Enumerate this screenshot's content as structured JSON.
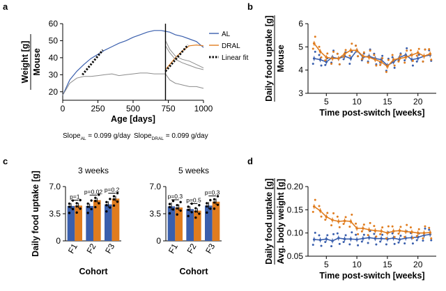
{
  "colors": {
    "al": "#3a5fad",
    "dral": "#e07c1e",
    "grey": "#8c8c8c",
    "fit": "#111111",
    "black": "#000000"
  },
  "panel_labels": {
    "a": "a",
    "b": "b",
    "c": "c",
    "d": "d"
  },
  "chart_data": [
    {
      "panel": "a",
      "type": "line",
      "xlabel": "Age [days]",
      "ylabel_top": "Weight [g]",
      "ylabel_bottom": "Mouse",
      "xlim": [
        0,
        1000
      ],
      "ylim": [
        15,
        60
      ],
      "xticks": [
        0,
        250,
        500,
        750,
        1000
      ],
      "yticks": [
        20,
        30,
        40,
        50,
        60
      ],
      "switch_day": 730,
      "legend": {
        "placement": "right",
        "entries": [
          "AL",
          "DRAL",
          "Linear fit"
        ]
      },
      "series": [
        {
          "name": "AL",
          "color_key": "al",
          "x": [
            0,
            50,
            100,
            150,
            200,
            250,
            300,
            350,
            400,
            450,
            500,
            550,
            600,
            650,
            700,
            730,
            760,
            800,
            850,
            900,
            950,
            1000
          ],
          "y": [
            18,
            27,
            32,
            36,
            39.5,
            42,
            44.5,
            46.5,
            48.5,
            50,
            52,
            53.5,
            55,
            56,
            56,
            55.5,
            55,
            53.5,
            52.5,
            51,
            49.5,
            46
          ]
        },
        {
          "name": "DRAL",
          "color_key": "dral",
          "x": [
            730,
            760,
            800,
            850,
            900,
            950,
            1000
          ],
          "y": [
            33,
            36,
            40,
            44,
            47,
            47.5,
            47
          ]
        },
        {
          "color_key": "grey",
          "x": [
            0,
            50,
            100,
            150,
            200,
            250,
            300,
            350,
            400,
            450,
            500,
            550,
            600,
            650,
            700,
            730
          ],
          "y": [
            18,
            25,
            28,
            29,
            29,
            29.5,
            30,
            30.5,
            29.5,
            30,
            30.5,
            31,
            31,
            30.5,
            30.5,
            30.5
          ]
        },
        {
          "color_key": "grey",
          "x": [
            730,
            760,
            800,
            850,
            900,
            950,
            1000
          ],
          "y": [
            30.5,
            27,
            25,
            24,
            23,
            23,
            22
          ]
        },
        {
          "color_key": "grey",
          "x": [
            730,
            760,
            800,
            850,
            900,
            950,
            1000
          ],
          "y": [
            50,
            45,
            41,
            39,
            38,
            36,
            34
          ]
        },
        {
          "color_key": "grey",
          "x": [
            730,
            760,
            800,
            850,
            900,
            950,
            1000
          ],
          "y": [
            47,
            43,
            39,
            37,
            35.5,
            34,
            33
          ]
        }
      ],
      "fits": [
        {
          "name": "Linear fit",
          "x": [
            140,
            285
          ],
          "y": [
            30,
            44.5
          ]
        },
        {
          "x": [
            730,
            890
          ],
          "y": [
            32,
            47.5
          ]
        }
      ],
      "slopes": [
        {
          "base": "Slope",
          "sub": "AL",
          "value": " = 0.099 g/day"
        },
        {
          "base": "Slope",
          "sub": "DRAL",
          "value": " = 0.099 g/day"
        }
      ]
    },
    {
      "panel": "b",
      "type": "line",
      "xlabel": "Time post-switch [weeks]",
      "ylabel_top": "Daily food uptake [g]",
      "ylabel_bottom": "Mouse",
      "xlim": [
        2,
        23
      ],
      "ylim": [
        3,
        6
      ],
      "xticks": [
        5,
        10,
        15,
        20
      ],
      "yticks": [
        3,
        4,
        5,
        6
      ],
      "series": [
        {
          "name": "AL",
          "color_key": "al",
          "x": [
            3,
            4,
            5,
            6,
            7,
            8,
            9,
            10,
            11,
            12,
            13,
            14,
            15,
            16,
            17,
            18,
            19,
            20,
            21,
            22
          ],
          "y": [
            4.5,
            4.45,
            4.35,
            4.55,
            4.5,
            4.6,
            4.5,
            4.85,
            4.55,
            4.6,
            4.5,
            4.45,
            4.2,
            4.35,
            4.55,
            4.65,
            4.45,
            4.5,
            4.6,
            4.65
          ]
        },
        {
          "name": "DRAL",
          "color_key": "dral",
          "x": [
            3,
            4,
            5,
            6,
            7,
            8,
            9,
            10,
            11,
            12,
            13,
            14,
            15,
            16,
            17,
            18,
            19,
            20,
            21,
            22
          ],
          "y": [
            5.15,
            4.8,
            4.55,
            4.5,
            4.5,
            4.7,
            4.85,
            4.85,
            4.6,
            4.55,
            4.45,
            4.35,
            4.15,
            4.45,
            4.5,
            4.55,
            4.65,
            4.75,
            4.6,
            4.7
          ]
        }
      ]
    },
    {
      "panel": "c",
      "type": "bar",
      "xlabel": "Cohort",
      "ylabel": "Daily food uptake [g]",
      "subplots": [
        {
          "title": "3 weeks",
          "categories": [
            "F1",
            "F2",
            "F3"
          ],
          "ylim": [
            0,
            7
          ],
          "yticks": [
            "0",
            "3.5",
            "7.0"
          ],
          "series": [
            {
              "name": "AL",
              "color_key": "al",
              "values": [
                4.5,
                4.5,
                4.7
              ]
            },
            {
              "name": "DRAL",
              "color_key": "dral",
              "values": [
                4.55,
                5.25,
                5.45
              ]
            }
          ],
          "errors": [
            [
              0.35,
              0.3,
              0.4
            ],
            [
              0.35,
              0.3,
              0.35
            ]
          ],
          "pvalues": [
            "p=1",
            "p=0.02",
            "p=0.2"
          ]
        },
        {
          "title": "5 weeks",
          "categories": [
            "F1",
            "F2",
            "F3"
          ],
          "ylim": [
            0,
            7
          ],
          "yticks": [
            "0",
            "3.5",
            "7.0"
          ],
          "series": [
            {
              "name": "AL",
              "color_key": "al",
              "values": [
                4.45,
                4.1,
                4.55
              ]
            },
            {
              "name": "DRAL",
              "color_key": "dral",
              "values": [
                4.3,
                3.9,
                5.05
              ]
            }
          ],
          "errors": [
            [
              0.5,
              0.35,
              0.45
            ],
            [
              0.4,
              0.3,
              0.4
            ]
          ],
          "pvalues": [
            "p=0.3",
            "p=0.5",
            "p=0.3"
          ]
        }
      ]
    },
    {
      "panel": "d",
      "type": "line",
      "xlabel": "Time post-switch [weeks]",
      "ylabel_top": "Daily food uptake [g]",
      "ylabel_bottom": "Avg. body weight [g]",
      "xlim": [
        2,
        23
      ],
      "ylim": [
        0.05,
        0.2
      ],
      "xticks": [
        5,
        10,
        15,
        20
      ],
      "yticks": [
        "0.05",
        "0.10",
        "0.15",
        "0.20"
      ],
      "series": [
        {
          "name": "AL",
          "color_key": "al",
          "x": [
            3,
            4,
            5,
            6,
            7,
            8,
            9,
            10,
            11,
            12,
            13,
            14,
            15,
            16,
            17,
            18,
            19,
            20,
            21,
            22
          ],
          "y": [
            0.086,
            0.085,
            0.087,
            0.083,
            0.089,
            0.087,
            0.087,
            0.086,
            0.088,
            0.09,
            0.088,
            0.088,
            0.087,
            0.089,
            0.086,
            0.089,
            0.09,
            0.091,
            0.095,
            0.097
          ]
        },
        {
          "name": "DRAL",
          "color_key": "dral",
          "x": [
            3,
            4,
            5,
            6,
            7,
            8,
            9,
            10,
            11,
            12,
            13,
            14,
            15,
            16,
            17,
            18,
            19,
            20,
            21,
            22
          ],
          "y": [
            0.157,
            0.148,
            0.135,
            0.128,
            0.125,
            0.126,
            0.125,
            0.11,
            0.11,
            0.107,
            0.105,
            0.104,
            0.1,
            0.104,
            0.105,
            0.103,
            0.102,
            0.1,
            0.1,
            0.101
          ]
        }
      ]
    }
  ]
}
